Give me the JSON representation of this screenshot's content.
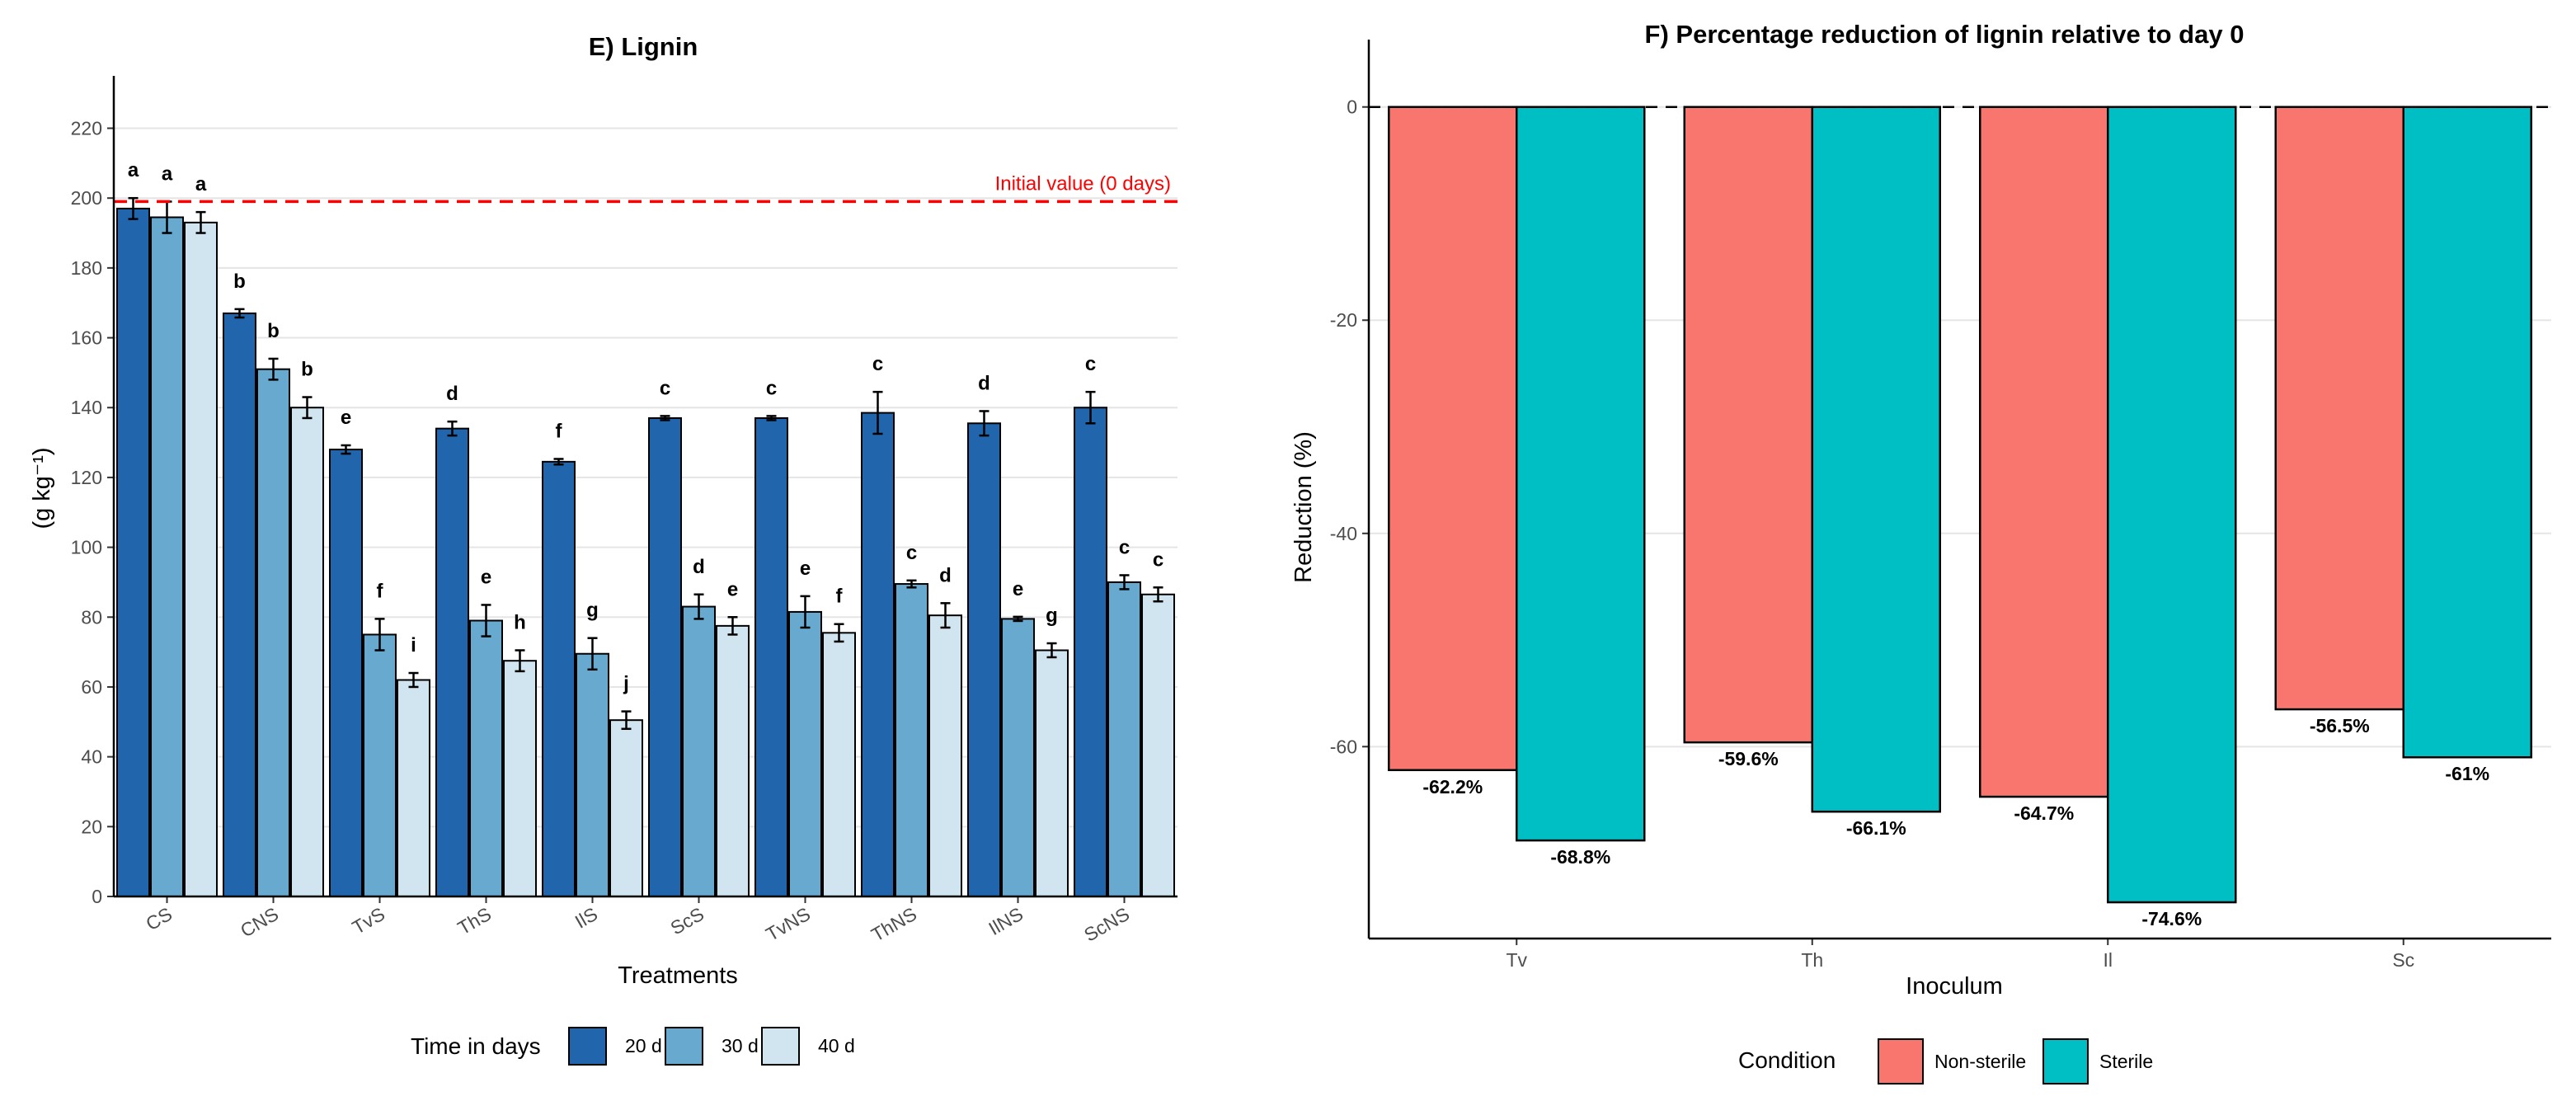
{
  "chart_data": [
    {
      "type": "bar",
      "title": "E) Lignin",
      "xlabel": "Treatments",
      "ylabel": "(g kg⁻¹)",
      "ylim": [
        0,
        235
      ],
      "yticks": [
        0,
        20,
        40,
        60,
        80,
        100,
        120,
        140,
        160,
        180,
        200,
        220
      ],
      "grid": true,
      "categories": [
        "CS",
        "CNS",
        "TvS",
        "ThS",
        "IlS",
        "ScS",
        "TvNS",
        "ThNS",
        "IlNS",
        "ScNS"
      ],
      "series": [
        {
          "name": "20 d",
          "color": "#2166ac",
          "values": [
            197,
            167,
            128,
            134,
            124.5,
            137,
            137,
            138.5,
            135.5,
            140
          ],
          "errors": [
            3,
            1.2,
            1.2,
            2,
            0.8,
            0.6,
            0.6,
            6,
            3.5,
            4.5
          ],
          "letters": [
            "a",
            "b",
            "e",
            "d",
            "f",
            "c",
            "c",
            "c",
            "d",
            "c"
          ]
        },
        {
          "name": "30 d",
          "color": "#67a9cf",
          "values": [
            194.5,
            151,
            75,
            79,
            69.5,
            83,
            81.5,
            89.5,
            79.5,
            90
          ],
          "errors": [
            4.5,
            3,
            4.5,
            4.5,
            4.5,
            3.5,
            4.5,
            1,
            0.6,
            2
          ],
          "letters": [
            "a",
            "b",
            "f",
            "e",
            "g",
            "d",
            "e",
            "c",
            "e",
            "c"
          ]
        },
        {
          "name": "40 d",
          "color": "#d1e5f0",
          "values": [
            193,
            140,
            62,
            67.5,
            50.5,
            77.5,
            75.5,
            80.5,
            70.5,
            86.5
          ],
          "errors": [
            3,
            3,
            2,
            3,
            2.5,
            2.5,
            2.5,
            3.5,
            2,
            2
          ],
          "letters": [
            "a",
            "b",
            "i",
            "h",
            "j",
            "e",
            "f",
            "d",
            "g",
            "c"
          ]
        }
      ],
      "reference_line": {
        "value": 199,
        "label": "Initial value (0 days)",
        "color": "#ff0000"
      },
      "legend": {
        "title": "Time in days",
        "position": "bottom"
      }
    },
    {
      "type": "bar",
      "title": "F) Percentage reduction of lignin relative to day 0",
      "xlabel": "Inoculum",
      "ylabel": "Reduction (%)",
      "ylim": [
        -78,
        4
      ],
      "yticks": [
        -60,
        -40,
        -20,
        0
      ],
      "grid": true,
      "categories": [
        "Tv",
        "Th",
        "Il",
        "Sc"
      ],
      "series": [
        {
          "name": "Non-sterile",
          "color": "#f8766d",
          "values": [
            -62.2,
            -59.6,
            -64.7,
            -56.5
          ],
          "labels": [
            "-62.2%",
            "-59.6%",
            "-64.7%",
            "-56.5%"
          ]
        },
        {
          "name": "Sterile",
          "color": "#00bfc4",
          "values": [
            -68.8,
            -66.1,
            -74.6,
            -61
          ],
          "labels": [
            "-68.8%",
            "-66.1%",
            "-74.6%",
            "-61%"
          ]
        }
      ],
      "reference_line": {
        "value": 0
      },
      "legend": {
        "title": "Condition",
        "position": "bottom"
      }
    }
  ]
}
